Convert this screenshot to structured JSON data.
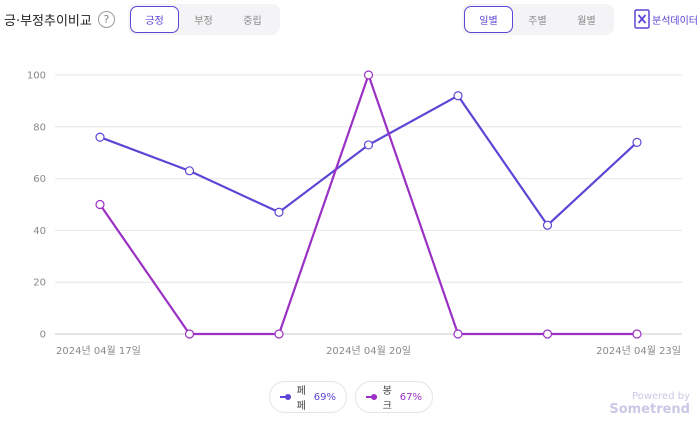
{
  "header": {
    "title": "긍·부정추이비교",
    "help_glyph": "?"
  },
  "sentiment_tabs": [
    {
      "label": "긍정",
      "active": true
    },
    {
      "label": "부정",
      "active": false
    },
    {
      "label": "중립",
      "active": false
    }
  ],
  "period_tabs": [
    {
      "label": "일별",
      "active": true
    },
    {
      "label": "주별",
      "active": false
    },
    {
      "label": "월별",
      "active": false
    }
  ],
  "download": {
    "label": "분석데이터",
    "icon": "excel-icon"
  },
  "chart_data": {
    "type": "line",
    "x": [
      "2024-04-17",
      "2024-04-18",
      "2024-04-19",
      "2024-04-20",
      "2024-04-21",
      "2024-04-22",
      "2024-04-23"
    ],
    "x_tick_labels": [
      "2024년 04월 17일",
      "2024년 04월 20일",
      "2024년 04월 23일"
    ],
    "y_ticks": [
      0,
      20,
      40,
      60,
      80,
      100
    ],
    "ylim": [
      0,
      100
    ],
    "grid": true,
    "series": [
      {
        "name": "페페",
        "color": "#5b47d6",
        "values": [
          76,
          63,
          47,
          73,
          92,
          42,
          74
        ]
      },
      {
        "name": "봉크",
        "color": "#9b30c4",
        "values": [
          50,
          0,
          0,
          100,
          0,
          0,
          0
        ]
      }
    ]
  },
  "legend": [
    {
      "name": "페페",
      "percent": "69%",
      "color": "#5b47d6"
    },
    {
      "name": "봉크",
      "percent": "67%",
      "color": "#9b30c4"
    }
  ],
  "branding": {
    "powered_by": "Powered by",
    "brand": "Sometrend"
  }
}
